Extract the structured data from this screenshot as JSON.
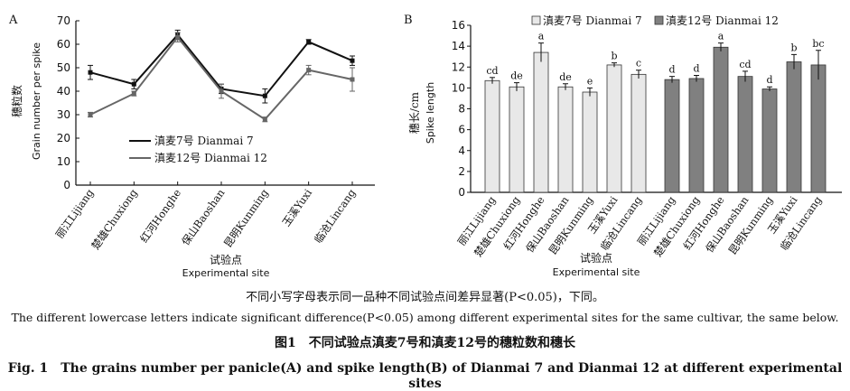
{
  "chart_data": [
    {
      "type": "line",
      "panel_label": "A",
      "ylabel_cn": "穗粒数",
      "ylabel_en": "Grain number per spike",
      "xlabel_cn": "试验点",
      "xlabel_en": "Experimental site",
      "ylim": [
        0,
        70
      ],
      "yticks": [
        0,
        10,
        20,
        30,
        40,
        50,
        60,
        70
      ],
      "categories": [
        "丽江Lijiang",
        "楚雄Chuxiong",
        "红河Honghe",
        "保山Baoshan",
        "昆明Kunming",
        "玉溪Yuxi",
        "临沧Lincang"
      ],
      "legend_position": "lower-left",
      "series": [
        {
          "name": "滇麦7号 Dianmai 7",
          "color": "#111111",
          "values": [
            48,
            43,
            64,
            41,
            38,
            61,
            53
          ],
          "errors": [
            3,
            2,
            2,
            2,
            3,
            1,
            2
          ]
        },
        {
          "name": "滇麦12号 Dianmai 12",
          "color": "#666666",
          "values": [
            30,
            39,
            63,
            40,
            28,
            49,
            45
          ],
          "errors": [
            1,
            1,
            2,
            3,
            1,
            2,
            5
          ]
        }
      ]
    },
    {
      "type": "bar",
      "panel_label": "B",
      "ylabel_cn": "穗长/cm",
      "ylabel_en": "Spike length",
      "xlabel_cn": "试验点",
      "xlabel_en": "Experimental site",
      "ylim": [
        0,
        16
      ],
      "yticks": [
        0,
        2,
        4,
        6,
        8,
        10,
        12,
        14,
        16
      ],
      "categories": [
        "丽江Lijiang",
        "楚雄Chuxiong",
        "红河Honghe",
        "保山Baoshan",
        "昆明Kunming",
        "玉溪Yuxi",
        "临沧Lincang"
      ],
      "legend_position": "top",
      "series": [
        {
          "name": "滇麦7号 Dianmai 7",
          "color": "#e8e8e8",
          "values": [
            10.7,
            10.1,
            13.4,
            10.1,
            9.6,
            12.2,
            11.3
          ],
          "errors": [
            0.3,
            0.4,
            0.9,
            0.3,
            0.4,
            0.2,
            0.4
          ],
          "letters": [
            "cd",
            "de",
            "a",
            "de",
            "e",
            "b",
            "c"
          ]
        },
        {
          "name": "滇麦12号 Dianmai 12",
          "color": "#808080",
          "values": [
            10.8,
            10.9,
            13.9,
            11.1,
            9.9,
            12.5,
            12.2
          ],
          "errors": [
            0.3,
            0.3,
            0.4,
            0.5,
            0.2,
            0.7,
            1.4
          ],
          "letters": [
            "d",
            "d",
            "a",
            "cd",
            "d",
            "b",
            "bc"
          ]
        }
      ]
    }
  ],
  "notes": {
    "cn": "不同小写字母表示同一品种不同试验点间差异显著(P<0.05)，下同。",
    "en": "The different lowercase letters indicate significant difference(P<0.05) among different experimental sites for the same cultivar, the same below."
  },
  "caption": {
    "cn": "图1　不同试验点滇麦7号和滇麦12号的穗粒数和穗长",
    "en": "Fig. 1　The grains number per panicle(A) and spike length(B) of Dianmai 7 and Dianmai 12 at different experimental sites"
  }
}
